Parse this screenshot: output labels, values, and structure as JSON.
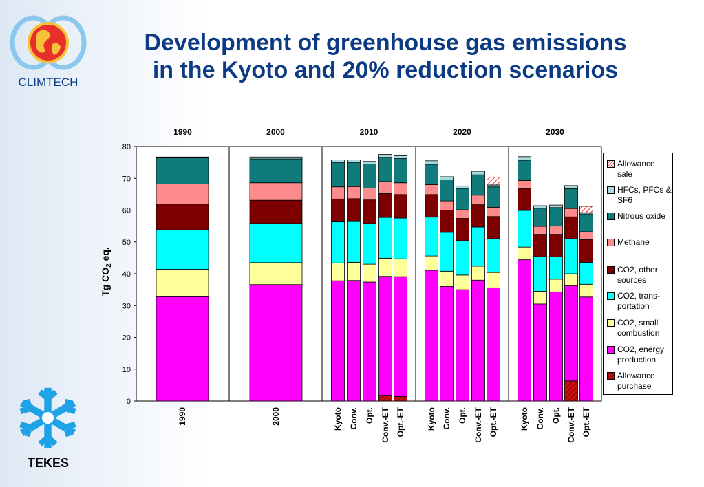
{
  "title": {
    "line1": "Development of greenhouse gas emissions",
    "line2": "in the Kyoto and 20% reduction scenarios"
  },
  "logos": {
    "climtech": {
      "label": "CLIMTECH",
      "icon": "globe-rings-icon"
    },
    "tekes": {
      "label": "TEKES",
      "icon": "snowflake-icon"
    }
  },
  "colors": {
    "allowance_sale": "#ff3030",
    "hfcs": "#a8dcdc",
    "nitrous_oxide": "#0f7b7b",
    "methane": "#ff8c8c",
    "co2_other": "#7c0000",
    "co2_transport": "#00ffff",
    "co2_small": "#ffff99",
    "co2_energy": "#ff00ff",
    "allowance_purchase": "#cc1010"
  },
  "chart_data": {
    "type": "bar",
    "stacked": true,
    "ylabel": "Tg CO2 eq.",
    "ylim": [
      0,
      80
    ],
    "yticks": [
      0,
      10,
      20,
      30,
      40,
      50,
      60,
      70,
      80
    ],
    "groups": [
      {
        "label": "1990",
        "categories": [
          "1990"
        ]
      },
      {
        "label": "2000",
        "categories": [
          "2000"
        ]
      },
      {
        "label": "2010",
        "categories": [
          "Kyoto",
          "Conv.",
          "Opt.",
          "Conv.-ET",
          "Opt.-ET"
        ]
      },
      {
        "label": "2020",
        "categories": [
          "Kyoto",
          "Conv.",
          "Opt.",
          "Conv.-ET",
          "Opt.-ET"
        ]
      },
      {
        "label": "2030",
        "categories": [
          "Kyoto",
          "Conv.",
          "Opt.",
          "Conv.-ET",
          "Opt.-ET"
        ]
      }
    ],
    "legend": [
      {
        "key": "allowance_sale",
        "label": "Allowance sale",
        "hatched": true
      },
      {
        "key": "hfcs",
        "label": "HFCs, PFCs & SF6"
      },
      {
        "key": "nitrous_oxide",
        "label": "Nitrous oxide"
      },
      {
        "key": "methane",
        "label": "Methane"
      },
      {
        "key": "co2_other",
        "label": "CO2, other sources"
      },
      {
        "key": "co2_transport",
        "label": "CO2, trans-portation"
      },
      {
        "key": "co2_small",
        "label": "CO2, small combustion"
      },
      {
        "key": "co2_energy",
        "label": "CO2, energy production"
      },
      {
        "key": "allowance_purchase",
        "label": "Allowance purchase",
        "hatched": true
      }
    ],
    "bars": [
      {
        "group": "1990",
        "category": "1990",
        "allowance_purchase": 0,
        "co2_energy": 32.8,
        "co2_small": 8.6,
        "co2_transport": 12.4,
        "co2_other": 8.1,
        "methane": 6.3,
        "nitrous_oxide": 8.4,
        "hfcs": 0.1,
        "allowance_sale": 0
      },
      {
        "group": "2000",
        "category": "2000",
        "allowance_purchase": 0,
        "co2_energy": 36.6,
        "co2_small": 6.9,
        "co2_transport": 12.3,
        "co2_other": 7.3,
        "methane": 5.5,
        "nitrous_oxide": 7.5,
        "hfcs": 0.6,
        "allowance_sale": 0
      },
      {
        "group": "2010",
        "category": "Kyoto",
        "allowance_purchase": 0,
        "co2_energy": 37.8,
        "co2_small": 5.6,
        "co2_transport": 12.9,
        "co2_other": 7.2,
        "methane": 3.8,
        "nitrous_oxide": 7.6,
        "hfcs": 0.9,
        "allowance_sale": 0
      },
      {
        "group": "2010",
        "category": "Conv.",
        "allowance_purchase": 0,
        "co2_energy": 37.9,
        "co2_small": 5.7,
        "co2_transport": 12.8,
        "co2_other": 7.2,
        "methane": 3.8,
        "nitrous_oxide": 7.5,
        "hfcs": 0.9,
        "allowance_sale": 0
      },
      {
        "group": "2010",
        "category": "Opt.",
        "allowance_purchase": 0,
        "co2_energy": 37.4,
        "co2_small": 5.6,
        "co2_transport": 12.8,
        "co2_other": 7.4,
        "methane": 3.7,
        "nitrous_oxide": 7.6,
        "hfcs": 0.8,
        "allowance_sale": 0
      },
      {
        "group": "2010",
        "category": "Conv.-ET",
        "allowance_purchase": 1.8,
        "co2_energy": 37.4,
        "co2_small": 5.7,
        "co2_transport": 12.8,
        "co2_other": 7.5,
        "methane": 3.8,
        "nitrous_oxide": 7.6,
        "hfcs": 0.9,
        "allowance_sale": 0
      },
      {
        "group": "2010",
        "category": "Opt.-ET",
        "allowance_purchase": 1.4,
        "co2_energy": 37.7,
        "co2_small": 5.6,
        "co2_transport": 12.8,
        "co2_other": 7.4,
        "methane": 3.7,
        "nitrous_oxide": 7.6,
        "hfcs": 0.9,
        "allowance_sale": 0
      },
      {
        "group": "2020",
        "category": "Kyoto",
        "allowance_purchase": 0,
        "co2_energy": 41.1,
        "co2_small": 4.5,
        "co2_transport": 12.2,
        "co2_other": 7.1,
        "methane": 3.1,
        "nitrous_oxide": 6.4,
        "hfcs": 1.1,
        "allowance_sale": 0
      },
      {
        "group": "2020",
        "category": "Conv.",
        "allowance_purchase": 0,
        "co2_energy": 36.0,
        "co2_small": 4.8,
        "co2_transport": 12.2,
        "co2_other": 7.0,
        "methane": 2.9,
        "nitrous_oxide": 6.6,
        "hfcs": 1.0,
        "allowance_sale": 0
      },
      {
        "group": "2020",
        "category": "Opt.",
        "allowance_purchase": 0,
        "co2_energy": 35.0,
        "co2_small": 4.6,
        "co2_transport": 10.8,
        "co2_other": 7.0,
        "methane": 2.7,
        "nitrous_oxide": 6.7,
        "hfcs": 0.8,
        "allowance_sale": 0
      },
      {
        "group": "2020",
        "category": "Conv.-ET",
        "allowance_purchase": 0,
        "co2_energy": 38.0,
        "co2_small": 4.4,
        "co2_transport": 12.3,
        "co2_other": 7.0,
        "methane": 3.0,
        "nitrous_oxide": 6.4,
        "hfcs": 1.1,
        "allowance_sale": 0
      },
      {
        "group": "2020",
        "category": "Opt.-ET",
        "allowance_purchase": 0,
        "co2_energy": 35.6,
        "co2_small": 4.8,
        "co2_transport": 10.6,
        "co2_other": 7.0,
        "methane": 2.9,
        "nitrous_oxide": 6.4,
        "hfcs": 0.6,
        "allowance_sale": 2.5
      },
      {
        "group": "2030",
        "category": "Kyoto",
        "allowance_purchase": 0,
        "co2_energy": 44.4,
        "co2_small": 4.0,
        "co2_transport": 11.5,
        "co2_other": 6.8,
        "methane": 2.6,
        "nitrous_oxide": 6.4,
        "hfcs": 1.1,
        "allowance_sale": 0
      },
      {
        "group": "2030",
        "category": "Conv.",
        "allowance_purchase": 0,
        "co2_energy": 30.5,
        "co2_small": 4.0,
        "co2_transport": 10.9,
        "co2_other": 7.0,
        "methane": 2.5,
        "nitrous_oxide": 5.7,
        "hfcs": 0.8,
        "allowance_sale": 0
      },
      {
        "group": "2030",
        "category": "Opt.",
        "allowance_purchase": 0,
        "co2_energy": 34.3,
        "co2_small": 4.0,
        "co2_transport": 7.0,
        "co2_other": 7.1,
        "methane": 2.6,
        "nitrous_oxide": 5.8,
        "hfcs": 0.8,
        "allowance_sale": 0
      },
      {
        "group": "2030",
        "category": "Conv.-ET",
        "allowance_purchase": 6.3,
        "co2_energy": 29.9,
        "co2_small": 3.8,
        "co2_transport": 11.0,
        "co2_other": 6.9,
        "methane": 2.6,
        "nitrous_oxide": 6.2,
        "hfcs": 1.0,
        "allowance_sale": 0
      },
      {
        "group": "2030",
        "category": "Opt.-ET",
        "allowance_purchase": 0,
        "co2_energy": 32.7,
        "co2_small": 4.0,
        "co2_transport": 6.9,
        "co2_other": 7.1,
        "methane": 2.5,
        "nitrous_oxide": 5.6,
        "hfcs": 0.4,
        "allowance_sale": 2.0
      }
    ]
  }
}
